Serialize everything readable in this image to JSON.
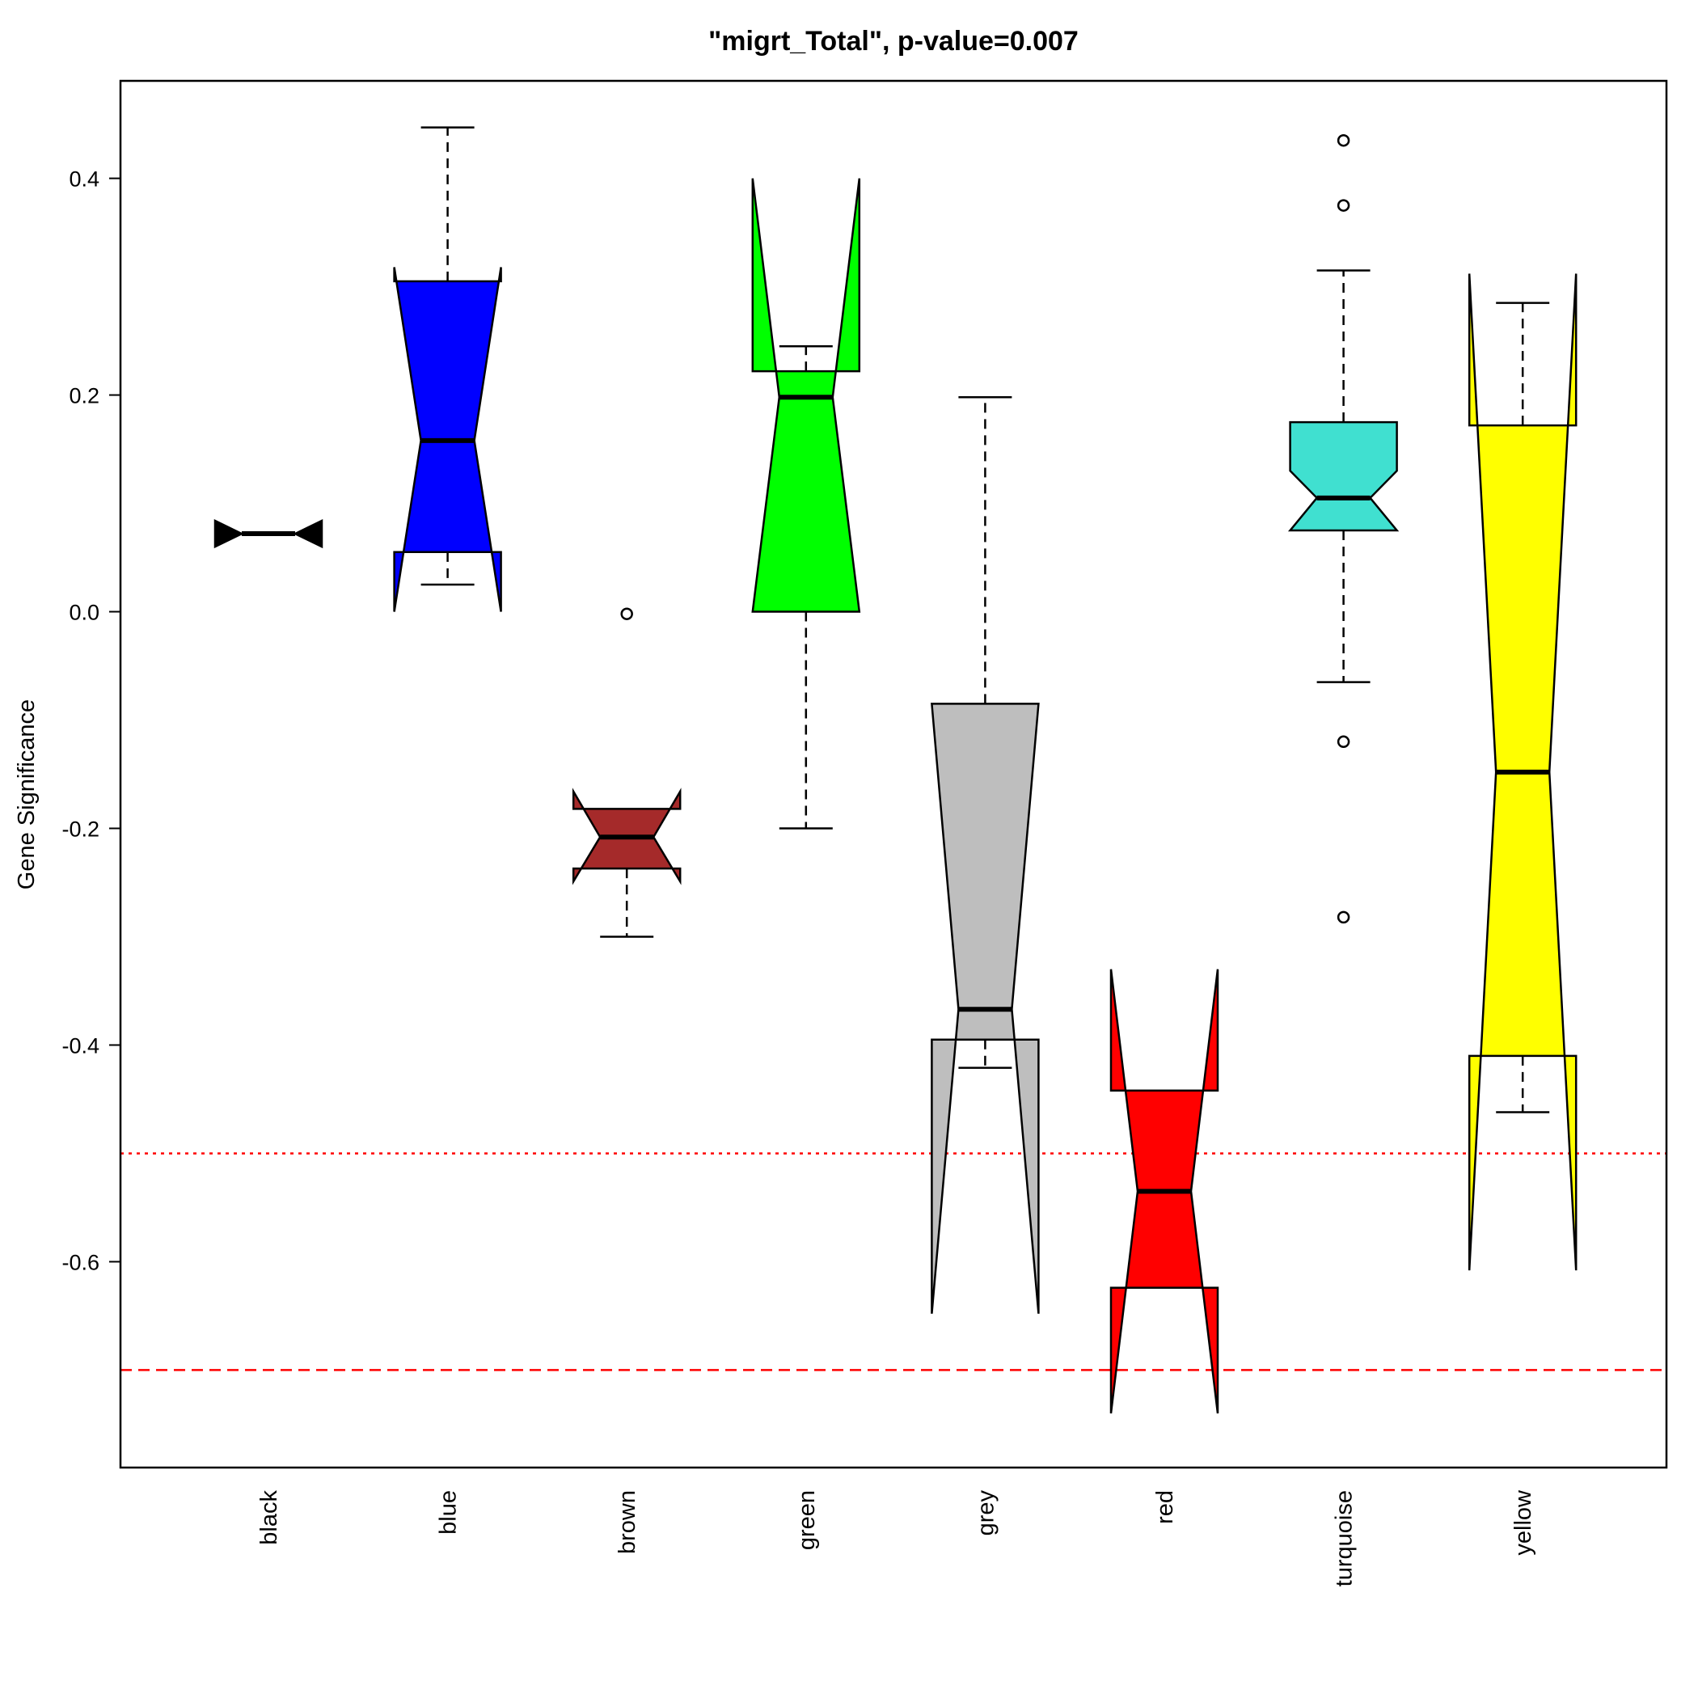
{
  "chart_data": {
    "type": "boxplot",
    "title": "\"migrt_Total\", p-value=0.007",
    "ylabel": "Gene Significance",
    "xlabel": "",
    "ylim": [
      -0.79,
      0.49
    ],
    "yticks": [
      -0.6,
      -0.4,
      -0.2,
      0.0,
      0.2,
      0.4
    ],
    "ytick_labels": [
      "-0.6",
      "-0.4",
      "-0.2",
      "0.0",
      "0.2",
      "0.4"
    ],
    "notched": true,
    "reference_lines": [
      {
        "y": -0.5,
        "color": "#ff0000",
        "style": "dotted"
      },
      {
        "y": -0.7,
        "color": "#ff0000",
        "style": "dashed"
      }
    ],
    "categories": [
      "black",
      "blue",
      "brown",
      "green",
      "grey",
      "red",
      "turquoise",
      "yellow"
    ],
    "boxes": [
      {
        "name": "black",
        "color": "#000000",
        "whisker_low": 0.072,
        "q1": 0.072,
        "median": 0.072,
        "q3": 0.072,
        "whisker_high": 0.072,
        "notch_low": 0.06,
        "notch_high": 0.084,
        "outliers": []
      },
      {
        "name": "blue",
        "color": "#0000ff",
        "whisker_low": 0.025,
        "q1": 0.055,
        "median": 0.158,
        "q3": 0.305,
        "whisker_high": 0.447,
        "notch_low": 0.0,
        "notch_high": 0.318,
        "outliers": []
      },
      {
        "name": "brown",
        "color": "#a52a2a",
        "whisker_low": -0.3,
        "q1": -0.237,
        "median": -0.208,
        "q3": -0.182,
        "whisker_high": -0.182,
        "notch_low": -0.249,
        "notch_high": -0.166,
        "outliers": [
          -0.002
        ]
      },
      {
        "name": "green",
        "color": "#00ff00",
        "whisker_low": -0.2,
        "q1": 0.0,
        "median": 0.198,
        "q3": 0.222,
        "whisker_high": 0.245,
        "notch_low": 0.0,
        "notch_high": 0.4,
        "outliers": []
      },
      {
        "name": "grey",
        "color": "#bebebe",
        "whisker_low": -0.421,
        "q1": -0.395,
        "median": -0.367,
        "q3": -0.085,
        "whisker_high": 0.198,
        "notch_low": -0.648,
        "notch_high": -0.085,
        "outliers": []
      },
      {
        "name": "red",
        "color": "#ff0000",
        "whisker_low": -0.624,
        "q1": -0.624,
        "median": -0.535,
        "q3": -0.442,
        "whisker_high": -0.442,
        "notch_low": -0.74,
        "notch_high": -0.33,
        "outliers": []
      },
      {
        "name": "turquoise",
        "color": "#40e0d0",
        "whisker_low": -0.065,
        "q1": 0.075,
        "median": 0.105,
        "q3": 0.175,
        "whisker_high": 0.315,
        "notch_low": 0.075,
        "notch_high": 0.13,
        "outliers": [
          0.435,
          0.375,
          -0.12,
          -0.282
        ]
      },
      {
        "name": "yellow",
        "color": "#ffff00",
        "whisker_low": -0.462,
        "q1": -0.41,
        "median": -0.148,
        "q3": 0.172,
        "whisker_high": 0.285,
        "notch_low": -0.608,
        "notch_high": 0.312,
        "outliers": []
      }
    ],
    "grid": false,
    "legend": "none"
  }
}
